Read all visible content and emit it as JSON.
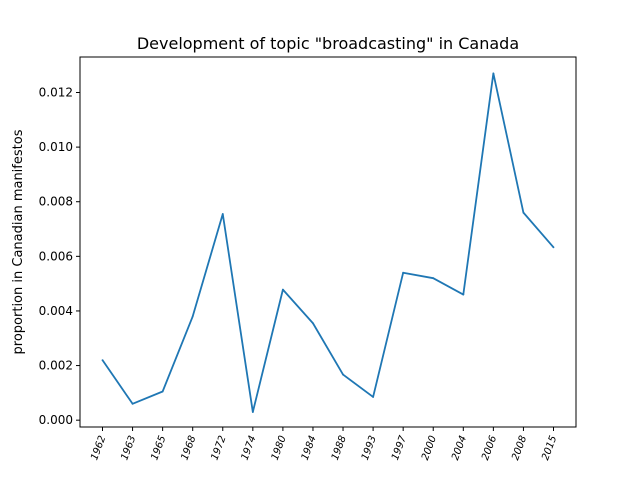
{
  "chart_data": {
    "type": "line",
    "title": "Development of topic \"broadcasting\" in Canada",
    "xlabel": "",
    "ylabel": "proportion in Canadian manifestos",
    "categories": [
      "1962",
      "1963",
      "1965",
      "1968",
      "1972",
      "1974",
      "1980",
      "1984",
      "1988",
      "1993",
      "1997",
      "2000",
      "2004",
      "2006",
      "2008",
      "2015"
    ],
    "series": [
      {
        "color": "#1f77b4",
        "values": [
          0.0022,
          0.0006,
          0.00105,
          0.0038,
          0.00755,
          0.0003,
          0.00478,
          0.00355,
          0.00167,
          0.00085,
          0.0054,
          0.0052,
          0.0046,
          0.0127,
          0.0076,
          0.00633
        ]
      }
    ],
    "ylim": [
      -0.00025,
      0.0133
    ],
    "yticks": [
      "0.000",
      "0.002",
      "0.004",
      "0.006",
      "0.008",
      "0.010",
      "0.012"
    ],
    "ytick_values": [
      0,
      0.002,
      0.004,
      0.006,
      0.008,
      0.01,
      0.012
    ],
    "grid": false
  }
}
